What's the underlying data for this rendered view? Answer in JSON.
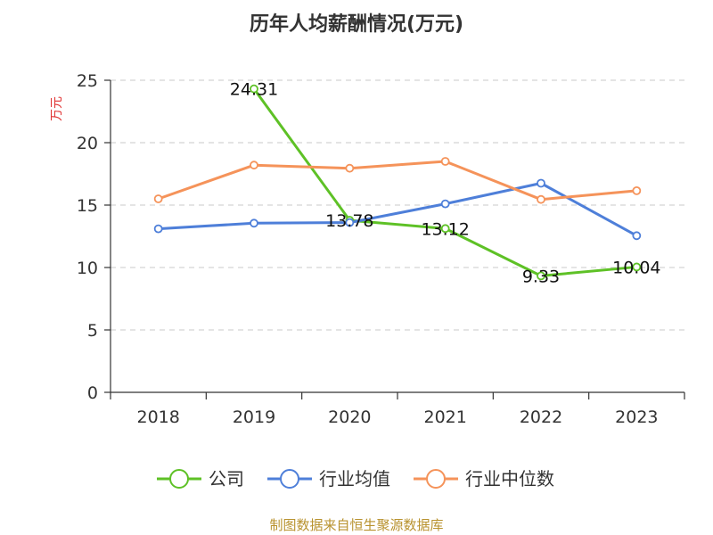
{
  "chart_data": {
    "type": "line",
    "title": "历年人均薪酬情况(万元)",
    "ylabel": "万元",
    "ylim": [
      0,
      25
    ],
    "yticks": [
      0,
      5,
      10,
      15,
      20,
      25
    ],
    "categories": [
      "2018",
      "2019",
      "2020",
      "2021",
      "2022",
      "2023"
    ],
    "grid": true,
    "legend_position": "bottom",
    "series": [
      {
        "name": "公司",
        "color": "#5ec126",
        "values": [
          null,
          24.31,
          13.78,
          13.12,
          9.33,
          10.04
        ],
        "labels": [
          null,
          "24.31",
          "13.78",
          "13.12",
          "9.33",
          "10.04"
        ]
      },
      {
        "name": "行业均值",
        "color": "#4e7fd9",
        "values": [
          13.1,
          13.55,
          13.6,
          15.1,
          16.75,
          12.55
        ]
      },
      {
        "name": "行业中位数",
        "color": "#f5935a",
        "values": [
          15.5,
          18.2,
          17.95,
          18.5,
          15.45,
          16.15
        ]
      }
    ],
    "source": "制图数据来自恒生聚源数据库"
  }
}
